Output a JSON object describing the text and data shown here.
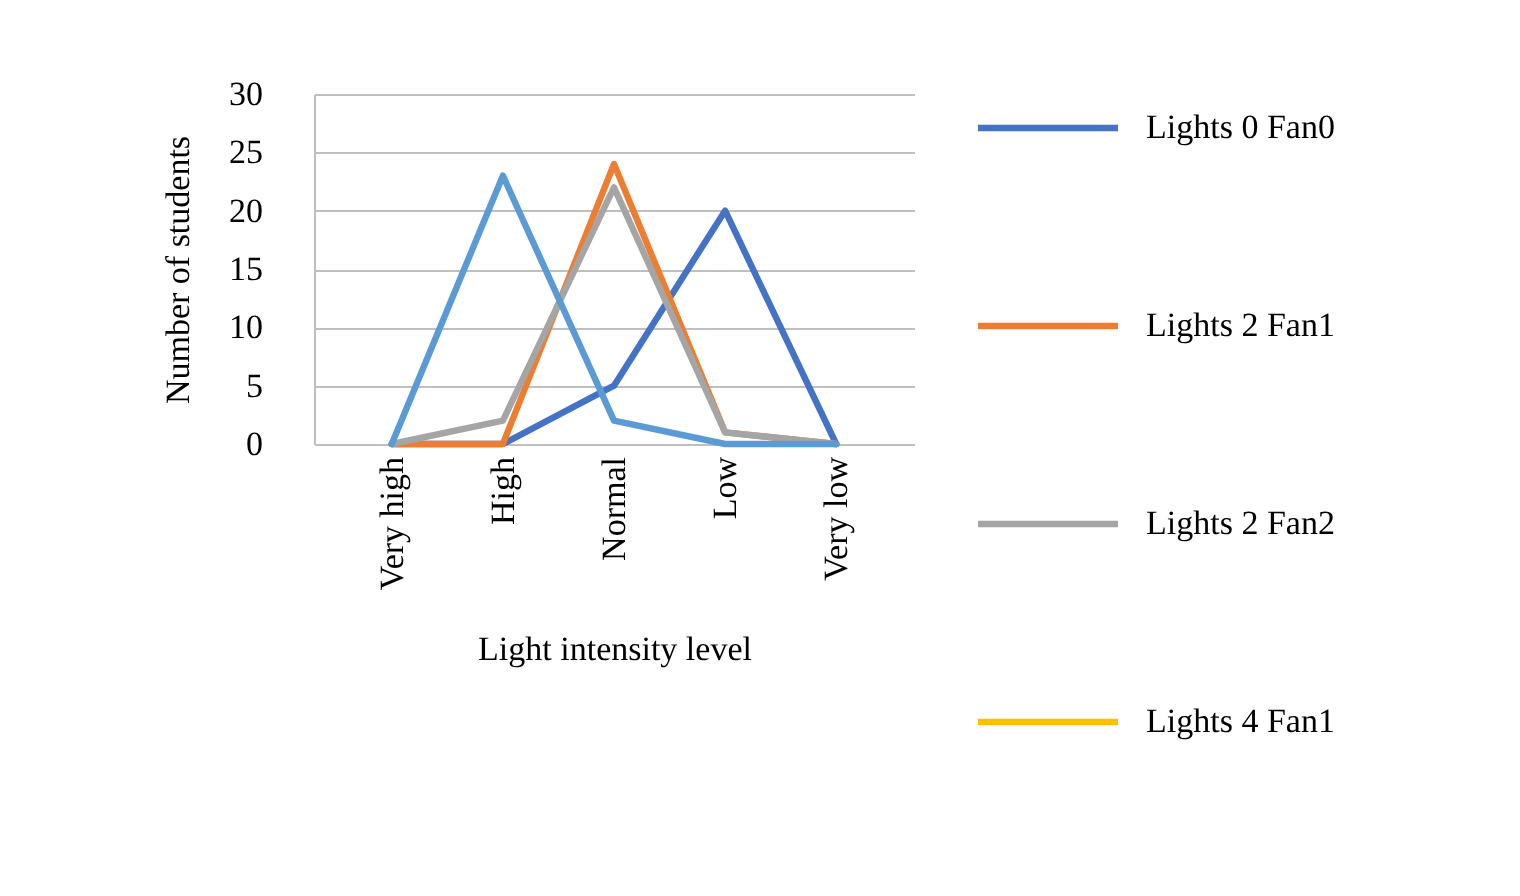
{
  "chart_data": {
    "type": "line",
    "xlabel": "Light intensity level",
    "ylabel": "Number of students",
    "categories": [
      "Very high",
      "High",
      "Normal",
      "Low",
      "Very low"
    ],
    "series": [
      {
        "name": "Lights 0 Fan0",
        "color": "#4472c4",
        "values": [
          0,
          0,
          5,
          20,
          0
        ]
      },
      {
        "name": "Lights 2 Fan1",
        "color": "#ed7d31",
        "values": [
          0,
          0,
          24,
          1,
          0
        ]
      },
      {
        "name": "Lights 2 Fan2",
        "color": "#a5a5a5",
        "values": [
          0,
          2,
          22,
          1,
          0
        ]
      },
      {
        "name": "Lights 4 Fan1",
        "color": "#ffc000",
        "values": [
          null,
          null,
          null,
          null,
          null
        ]
      },
      {
        "color": "#5b9bd5",
        "values": [
          0,
          23,
          2,
          0,
          0
        ]
      }
    ],
    "ylim": [
      0,
      30
    ],
    "yticks": [
      0,
      5,
      10,
      15,
      20,
      25,
      30
    ],
    "grid": "y",
    "legend": "right",
    "marker": "none",
    "line_style": "solid"
  }
}
